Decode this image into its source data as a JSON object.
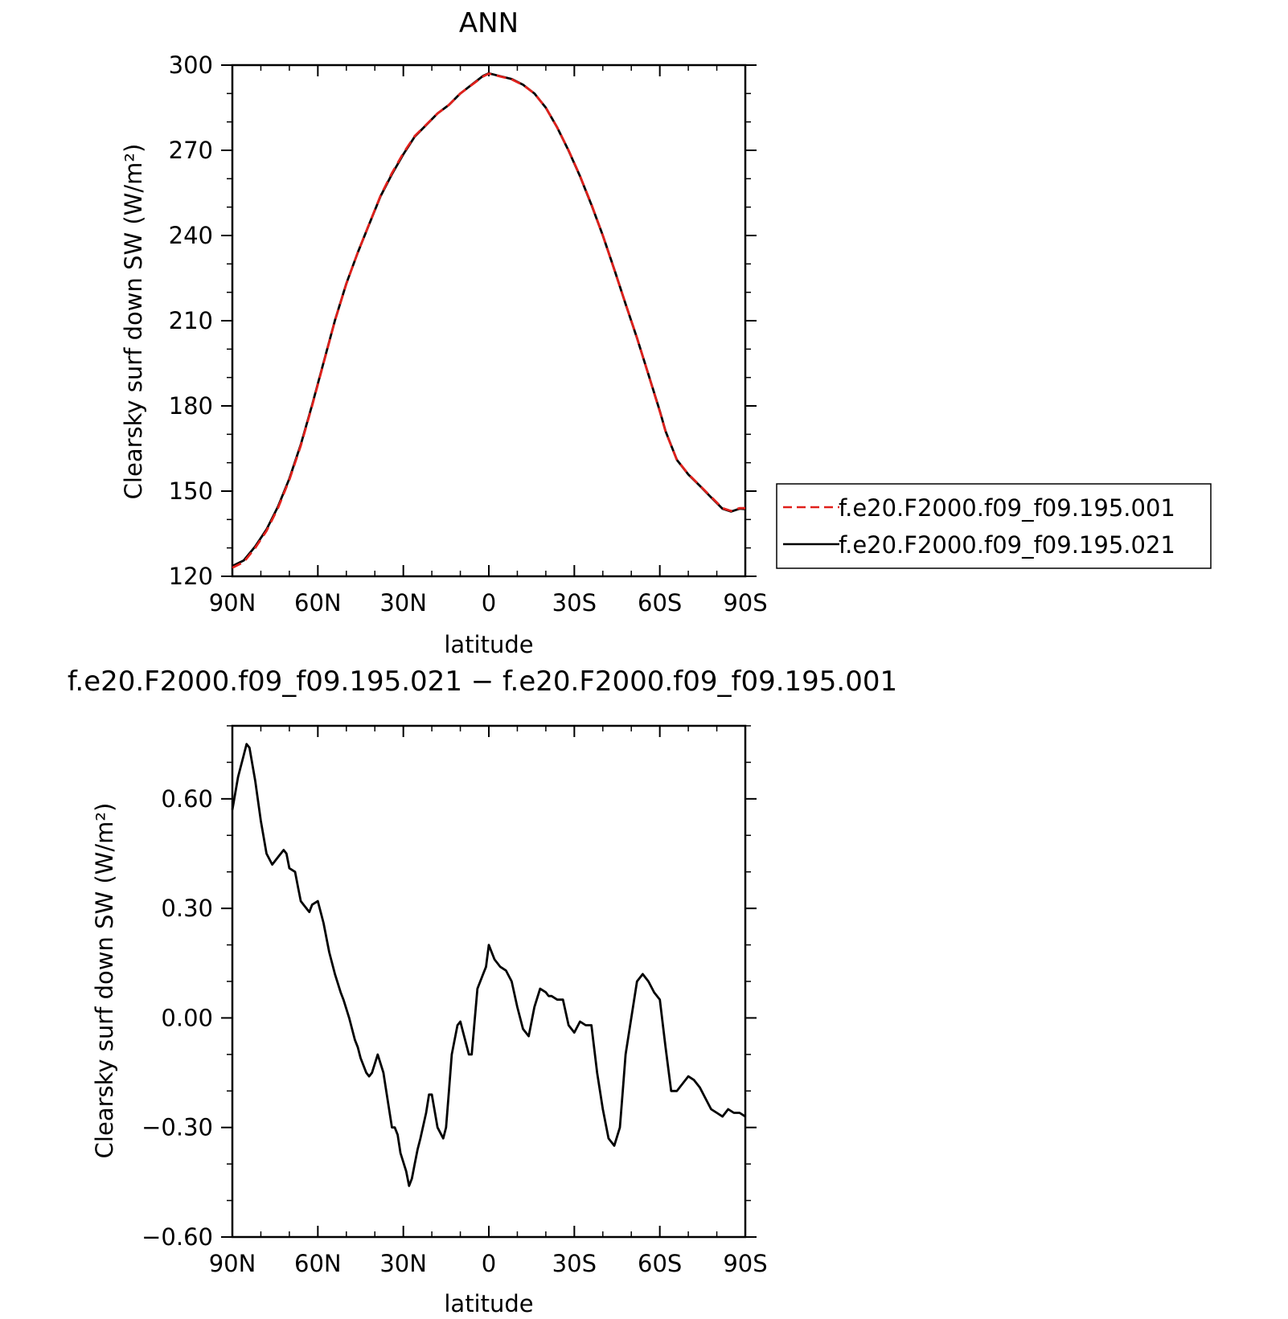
{
  "chart_data": [
    {
      "type": "line",
      "title": "ANN",
      "xlabel": "latitude",
      "ylabel": "Clearsky surf down SW (W/m²)",
      "xlim": [
        90,
        -90
      ],
      "ylim": [
        120,
        300
      ],
      "xticks": [
        {
          "value": 90,
          "label": "90N"
        },
        {
          "value": 60,
          "label": "60N"
        },
        {
          "value": 30,
          "label": "30N"
        },
        {
          "value": 0,
          "label": "0"
        },
        {
          "value": -30,
          "label": "30S"
        },
        {
          "value": -60,
          "label": "60S"
        },
        {
          "value": -90,
          "label": "90S"
        }
      ],
      "yticks": [
        {
          "value": 300,
          "label": "300"
        },
        {
          "value": 270,
          "label": "270"
        },
        {
          "value": 240,
          "label": "240"
        },
        {
          "value": 210,
          "label": "210"
        },
        {
          "value": 180,
          "label": "180"
        },
        {
          "value": 150,
          "label": "150"
        },
        {
          "value": 120,
          "label": "120"
        }
      ],
      "legend_position": "right",
      "series": [
        {
          "name": "f.e20.F2000.f09_f09.195.001",
          "color": "#e0201b",
          "dash": true,
          "x": [
            90,
            86,
            82,
            78,
            74,
            70,
            66,
            62,
            58,
            54,
            50,
            46,
            42,
            38,
            34,
            30,
            26,
            22,
            18,
            14,
            10,
            6,
            2,
            0,
            -4,
            -8,
            -12,
            -16,
            -20,
            -24,
            -28,
            -32,
            -36,
            -40,
            -44,
            -48,
            -52,
            -56,
            -60,
            -62,
            -64,
            -66,
            -70,
            -74,
            -78,
            -82,
            -85,
            -88,
            -90
          ],
          "y": [
            123,
            125,
            130,
            136,
            144,
            154,
            166,
            180,
            195,
            210,
            223,
            234,
            244,
            254,
            262,
            269,
            275,
            279,
            283,
            286,
            290,
            293,
            296,
            297,
            296,
            295,
            293,
            290,
            285,
            278,
            270,
            261,
            251,
            240,
            228,
            216,
            204,
            191,
            178,
            171,
            166,
            161,
            156,
            152,
            148,
            144,
            143,
            144,
            144
          ]
        },
        {
          "name": "f.e20.F2000.f09_f09.195.021",
          "color": "#000000",
          "dash": false,
          "x": [
            90,
            86,
            82,
            78,
            74,
            70,
            66,
            62,
            58,
            54,
            50,
            46,
            42,
            38,
            34,
            30,
            26,
            22,
            18,
            14,
            10,
            6,
            2,
            0,
            -4,
            -8,
            -12,
            -16,
            -20,
            -24,
            -28,
            -32,
            -36,
            -40,
            -44,
            -48,
            -52,
            -56,
            -60,
            -62,
            -64,
            -66,
            -70,
            -74,
            -78,
            -82,
            -85,
            -88,
            -90
          ],
          "y": [
            123.6,
            125.6,
            130.5,
            136.5,
            144.5,
            154.4,
            166.4,
            180.3,
            195.2,
            210.1,
            223.1,
            234,
            243.9,
            253.8,
            261.6,
            268.6,
            274.8,
            278.9,
            283,
            286,
            290,
            293.1,
            296.2,
            297.1,
            296.1,
            295.1,
            293.1,
            290,
            285,
            278,
            269.9,
            260.9,
            250.8,
            240,
            228.1,
            215.9,
            203.9,
            191.1,
            178.2,
            171.1,
            166.1,
            161,
            155.9,
            151.9,
            147.8,
            143.8,
            142.8,
            143.8,
            143.7
          ]
        }
      ]
    },
    {
      "type": "line",
      "title": "f.e20.F2000.f09_f09.195.021 − f.e20.F2000.f09_f09.195.001",
      "xlabel": "latitude",
      "ylabel": "Clearsky surf down SW (W/m²)",
      "xlim": [
        90,
        -90
      ],
      "ylim": [
        -0.6,
        0.8
      ],
      "xticks": [
        {
          "value": 90,
          "label": "90N"
        },
        {
          "value": 60,
          "label": "60N"
        },
        {
          "value": 30,
          "label": "30N"
        },
        {
          "value": 0,
          "label": "0"
        },
        {
          "value": -30,
          "label": "30S"
        },
        {
          "value": -60,
          "label": "60S"
        },
        {
          "value": -90,
          "label": "90S"
        }
      ],
      "yticks": [
        {
          "value": 0.6,
          "label": "0.60"
        },
        {
          "value": 0.3,
          "label": "0.30"
        },
        {
          "value": 0.0,
          "label": "0.00"
        },
        {
          "value": -0.3,
          "label": "−0.30"
        },
        {
          "value": -0.6,
          "label": "−0.60"
        }
      ],
      "series": [
        {
          "color": "#000000",
          "dash": false,
          "x": [
            90,
            88,
            86,
            85,
            84,
            82,
            80,
            78,
            76,
            74,
            72,
            71,
            70,
            68,
            67,
            66,
            65,
            63,
            62,
            60,
            58,
            56,
            54,
            52,
            51,
            49,
            47,
            46,
            45,
            43,
            42,
            41,
            39,
            37,
            36,
            34,
            33,
            32,
            31,
            29,
            28,
            27,
            26,
            25,
            24,
            22,
            21,
            20,
            18,
            16,
            15,
            14,
            13,
            11,
            10,
            9,
            7,
            6,
            4,
            2,
            1,
            0,
            -2,
            -4,
            -6,
            -8,
            -10,
            -12,
            -14,
            -16,
            -18,
            -20,
            -21,
            -22,
            -24,
            -26,
            -28,
            -30,
            -32,
            -34,
            -36,
            -38,
            -40,
            -42,
            -44,
            -46,
            -47,
            -48,
            -50,
            -52,
            -54,
            -56,
            -58,
            -60,
            -62,
            -64,
            -66,
            -68,
            -70,
            -72,
            -74,
            -76,
            -78,
            -80,
            -82,
            -84,
            -86,
            -88,
            -90
          ],
          "y": [
            0.57,
            0.66,
            0.72,
            0.75,
            0.74,
            0.65,
            0.54,
            0.45,
            0.42,
            0.44,
            0.46,
            0.45,
            0.41,
            0.4,
            0.36,
            0.32,
            0.31,
            0.29,
            0.31,
            0.32,
            0.26,
            0.18,
            0.12,
            0.07,
            0.05,
            0.0,
            -0.06,
            -0.08,
            -0.11,
            -0.15,
            -0.16,
            -0.15,
            -0.1,
            -0.15,
            -0.2,
            -0.3,
            -0.3,
            -0.32,
            -0.37,
            -0.42,
            -0.46,
            -0.44,
            -0.4,
            -0.36,
            -0.33,
            -0.26,
            -0.21,
            -0.21,
            -0.3,
            -0.33,
            -0.3,
            -0.2,
            -0.1,
            -0.02,
            -0.01,
            -0.04,
            -0.1,
            -0.1,
            0.08,
            0.12,
            0.14,
            0.2,
            0.16,
            0.14,
            0.13,
            0.1,
            0.03,
            -0.03,
            -0.05,
            0.03,
            0.08,
            0.07,
            0.06,
            0.06,
            0.05,
            0.05,
            -0.02,
            -0.04,
            -0.01,
            -0.02,
            -0.02,
            -0.15,
            -0.25,
            -0.33,
            -0.35,
            -0.3,
            -0.2,
            -0.1,
            0.0,
            0.1,
            0.12,
            0.1,
            0.07,
            0.05,
            -0.08,
            -0.2,
            -0.2,
            -0.18,
            -0.16,
            -0.17,
            -0.19,
            -0.22,
            -0.25,
            -0.26,
            -0.27,
            -0.25,
            -0.26,
            -0.26,
            -0.27
          ]
        }
      ]
    }
  ]
}
